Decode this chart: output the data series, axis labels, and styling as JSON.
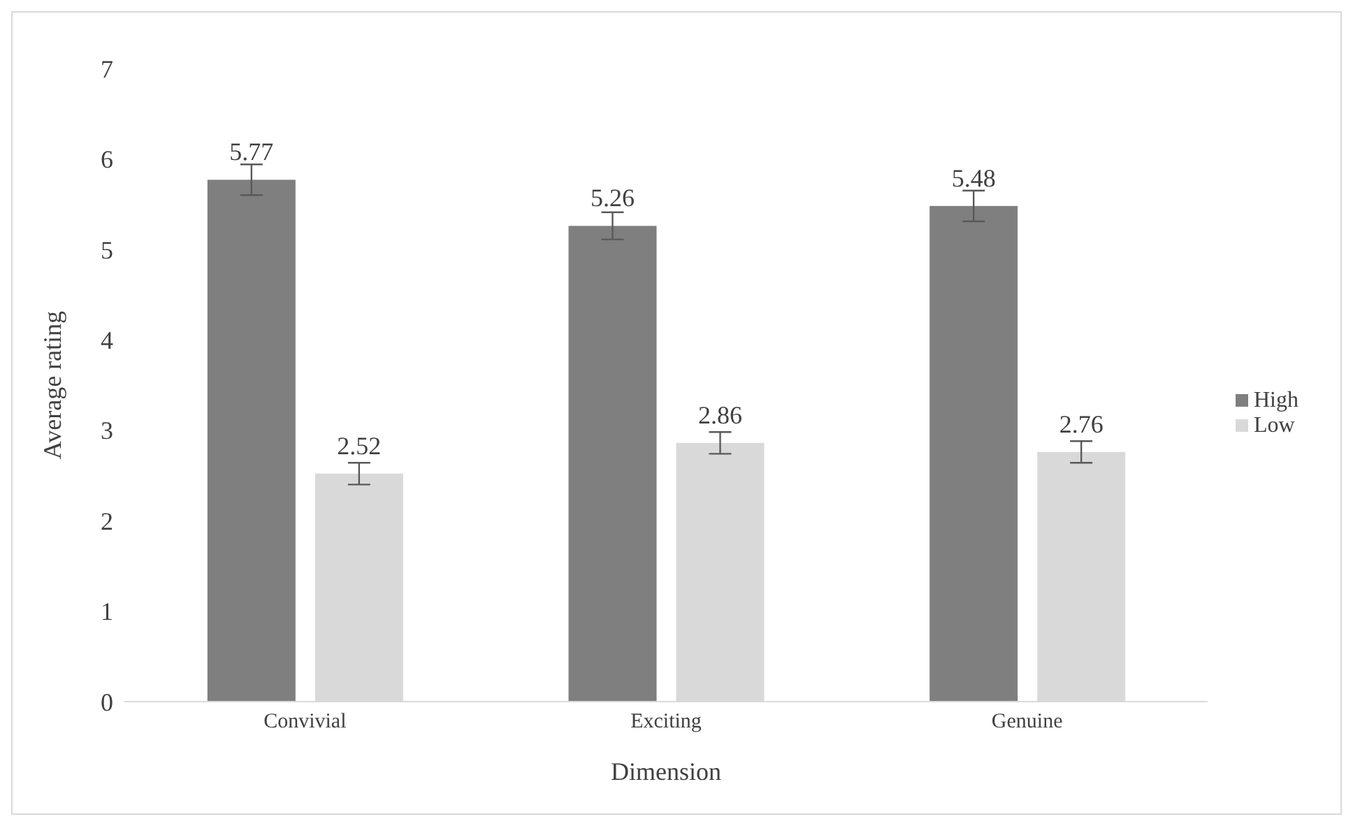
{
  "chart_data": {
    "type": "bar",
    "xlabel": "Dimension",
    "ylabel": "Average rating",
    "categories": [
      "Convivial",
      "Exciting",
      "Genuine"
    ],
    "series": [
      {
        "name": "High",
        "color": "#7f7f7f",
        "values": [
          5.77,
          5.26,
          5.48
        ],
        "errors": [
          0.17,
          0.15,
          0.17
        ]
      },
      {
        "name": "Low",
        "color": "#d9d9d9",
        "values": [
          2.52,
          2.86,
          2.76
        ],
        "errors": [
          0.12,
          0.12,
          0.12
        ]
      }
    ],
    "ylim": [
      0,
      7
    ],
    "yticks": [
      0,
      1,
      2,
      3,
      4,
      5,
      6,
      7
    ],
    "grid": false,
    "legend": "right",
    "data_labels": true
  }
}
